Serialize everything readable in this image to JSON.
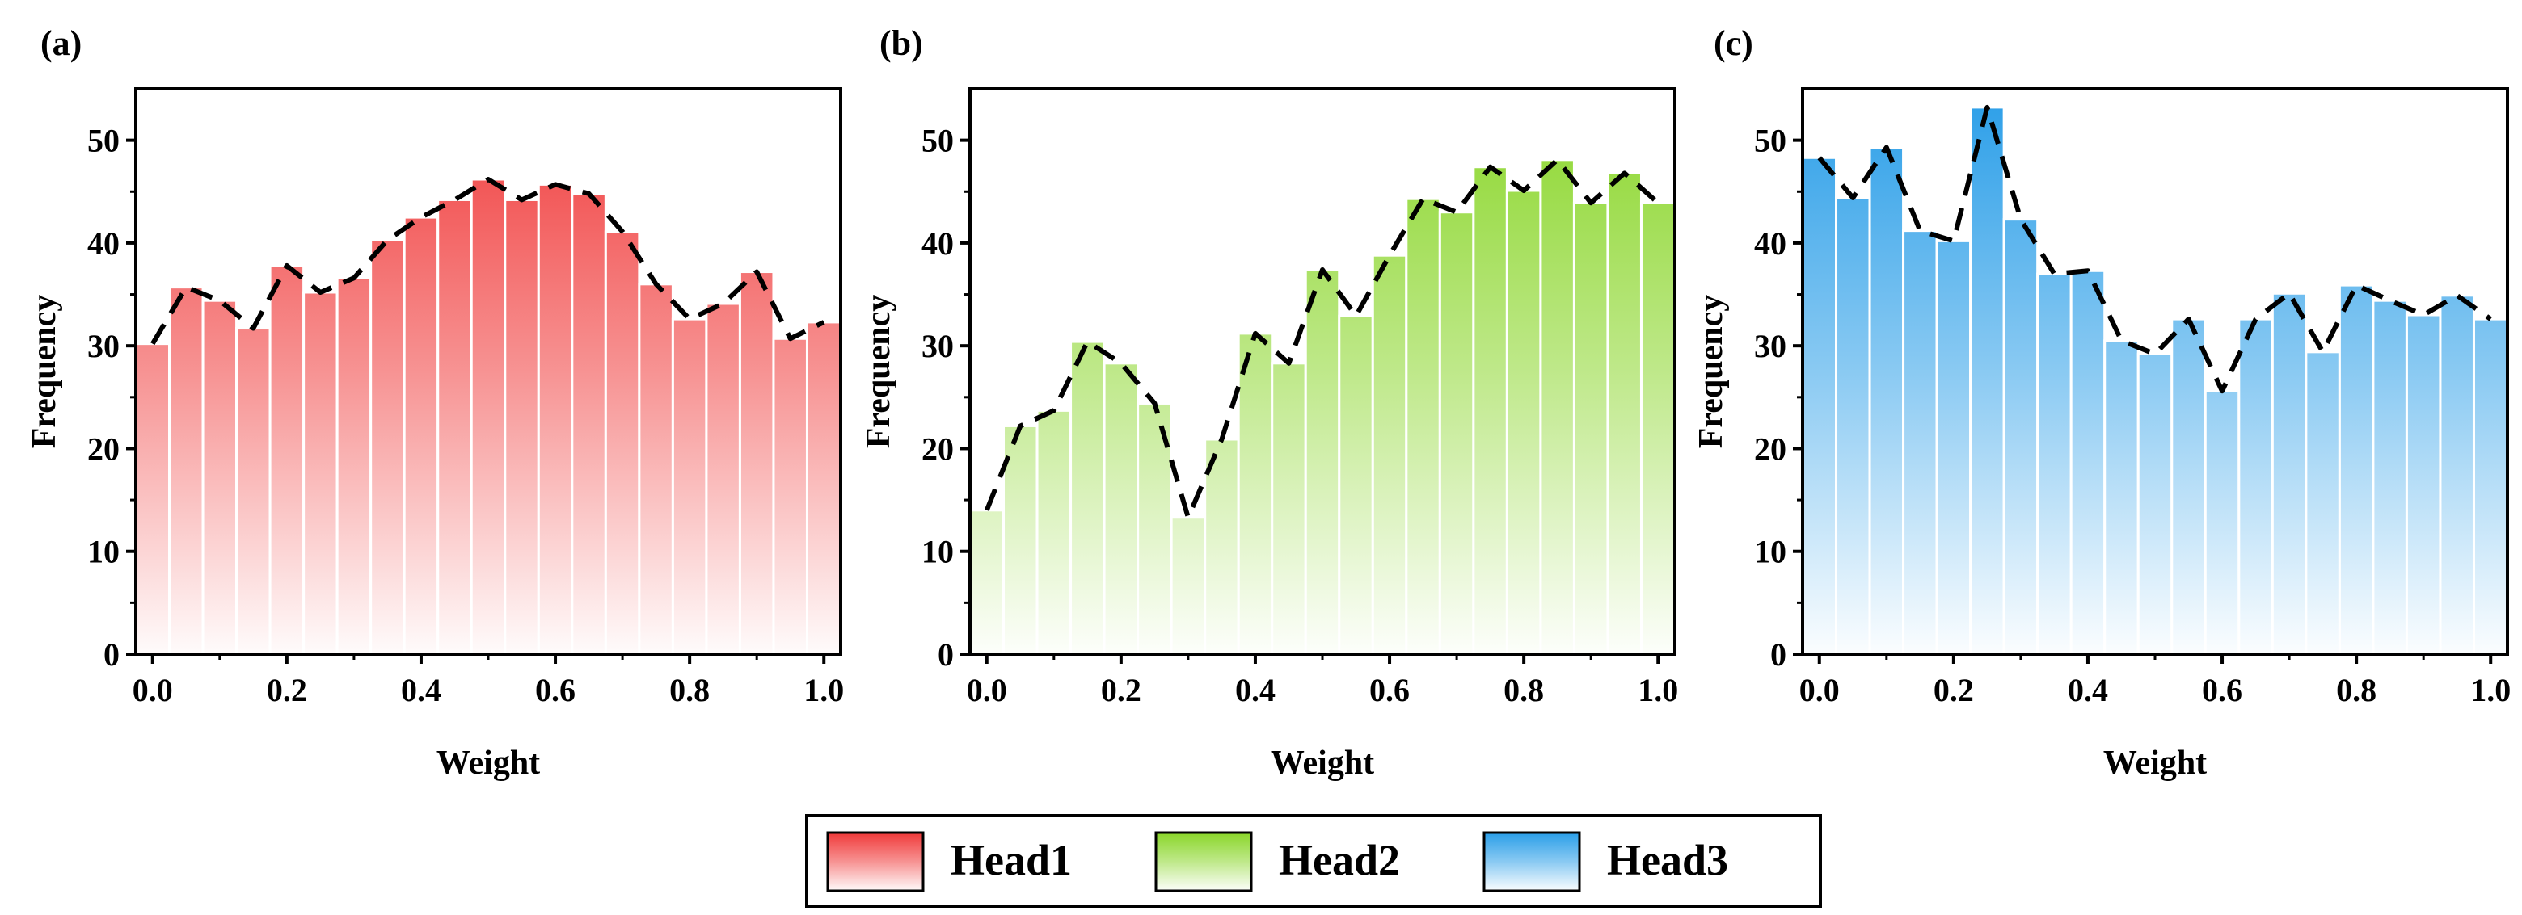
{
  "chart_data": [
    {
      "type": "bar",
      "panel_label": "(a)",
      "series": [
        {
          "name": "Head1",
          "values": [
            30.2,
            35.7,
            34.4,
            31.7,
            37.8,
            35.2,
            36.6,
            40.3,
            42.5,
            44.2,
            46.2,
            44.2,
            45.7,
            44.8,
            41.1,
            36.0,
            32.6,
            34.1,
            37.2,
            30.7,
            32.3
          ]
        }
      ],
      "x": [
        0.0,
        0.05,
        0.1,
        0.15,
        0.2,
        0.25,
        0.3,
        0.35,
        0.4,
        0.45,
        0.5,
        0.55,
        0.6,
        0.65,
        0.7,
        0.75,
        0.8,
        0.85,
        0.9,
        0.95,
        1.0
      ],
      "xlabel": "Weight",
      "ylabel": "Frequency",
      "xlim": [
        -0.025,
        1.025
      ],
      "ylim": [
        0,
        55
      ],
      "xticks": [
        "0.0",
        "0.2",
        "0.4",
        "0.6",
        "0.8",
        "1.0"
      ],
      "yticks": [
        "0",
        "10",
        "20",
        "30",
        "40",
        "50"
      ],
      "color": "#f03a3a"
    },
    {
      "type": "bar",
      "panel_label": "(b)",
      "series": [
        {
          "name": "Head2",
          "values": [
            14.0,
            22.2,
            23.7,
            30.4,
            28.3,
            24.4,
            13.3,
            20.9,
            31.2,
            28.3,
            37.4,
            32.9,
            38.8,
            44.3,
            43.0,
            47.4,
            45.1,
            48.1,
            43.9,
            46.8,
            43.9
          ]
        }
      ],
      "x": [
        0.0,
        0.05,
        0.1,
        0.15,
        0.2,
        0.25,
        0.3,
        0.35,
        0.4,
        0.45,
        0.5,
        0.55,
        0.6,
        0.65,
        0.7,
        0.75,
        0.8,
        0.85,
        0.9,
        0.95,
        1.0
      ],
      "xlabel": "Weight",
      "ylabel": "Frequency",
      "xlim": [
        -0.025,
        1.025
      ],
      "ylim": [
        0,
        55
      ],
      "xticks": [
        "0.0",
        "0.2",
        "0.4",
        "0.6",
        "0.8",
        "1.0"
      ],
      "yticks": [
        "0",
        "10",
        "20",
        "30",
        "40",
        "50"
      ],
      "color": "#8ad62a"
    },
    {
      "type": "bar",
      "panel_label": "(c)",
      "series": [
        {
          "name": "Head3",
          "values": [
            48.3,
            44.4,
            49.3,
            41.2,
            40.2,
            53.2,
            42.3,
            37.0,
            37.3,
            30.5,
            29.2,
            32.6,
            25.6,
            32.6,
            35.1,
            29.4,
            35.9,
            34.4,
            33.0,
            34.9,
            32.6
          ]
        }
      ],
      "x": [
        0.0,
        0.05,
        0.1,
        0.15,
        0.2,
        0.25,
        0.3,
        0.35,
        0.4,
        0.45,
        0.5,
        0.55,
        0.6,
        0.65,
        0.7,
        0.75,
        0.8,
        0.85,
        0.9,
        0.95,
        1.0
      ],
      "xlabel": "Weight",
      "ylabel": "Frequency",
      "xlim": [
        -0.025,
        1.025
      ],
      "ylim": [
        0,
        55
      ],
      "xticks": [
        "0.0",
        "0.2",
        "0.4",
        "0.6",
        "0.8",
        "1.0"
      ],
      "yticks": [
        "0",
        "10",
        "20",
        "30",
        "40",
        "50"
      ],
      "color": "#2a9ee8"
    }
  ],
  "legend": {
    "position": "bottom-center",
    "items": [
      {
        "label": "Head1",
        "color": "#f03a3a"
      },
      {
        "label": "Head2",
        "color": "#8ad62a"
      },
      {
        "label": "Head3",
        "color": "#2a9ee8"
      }
    ]
  }
}
